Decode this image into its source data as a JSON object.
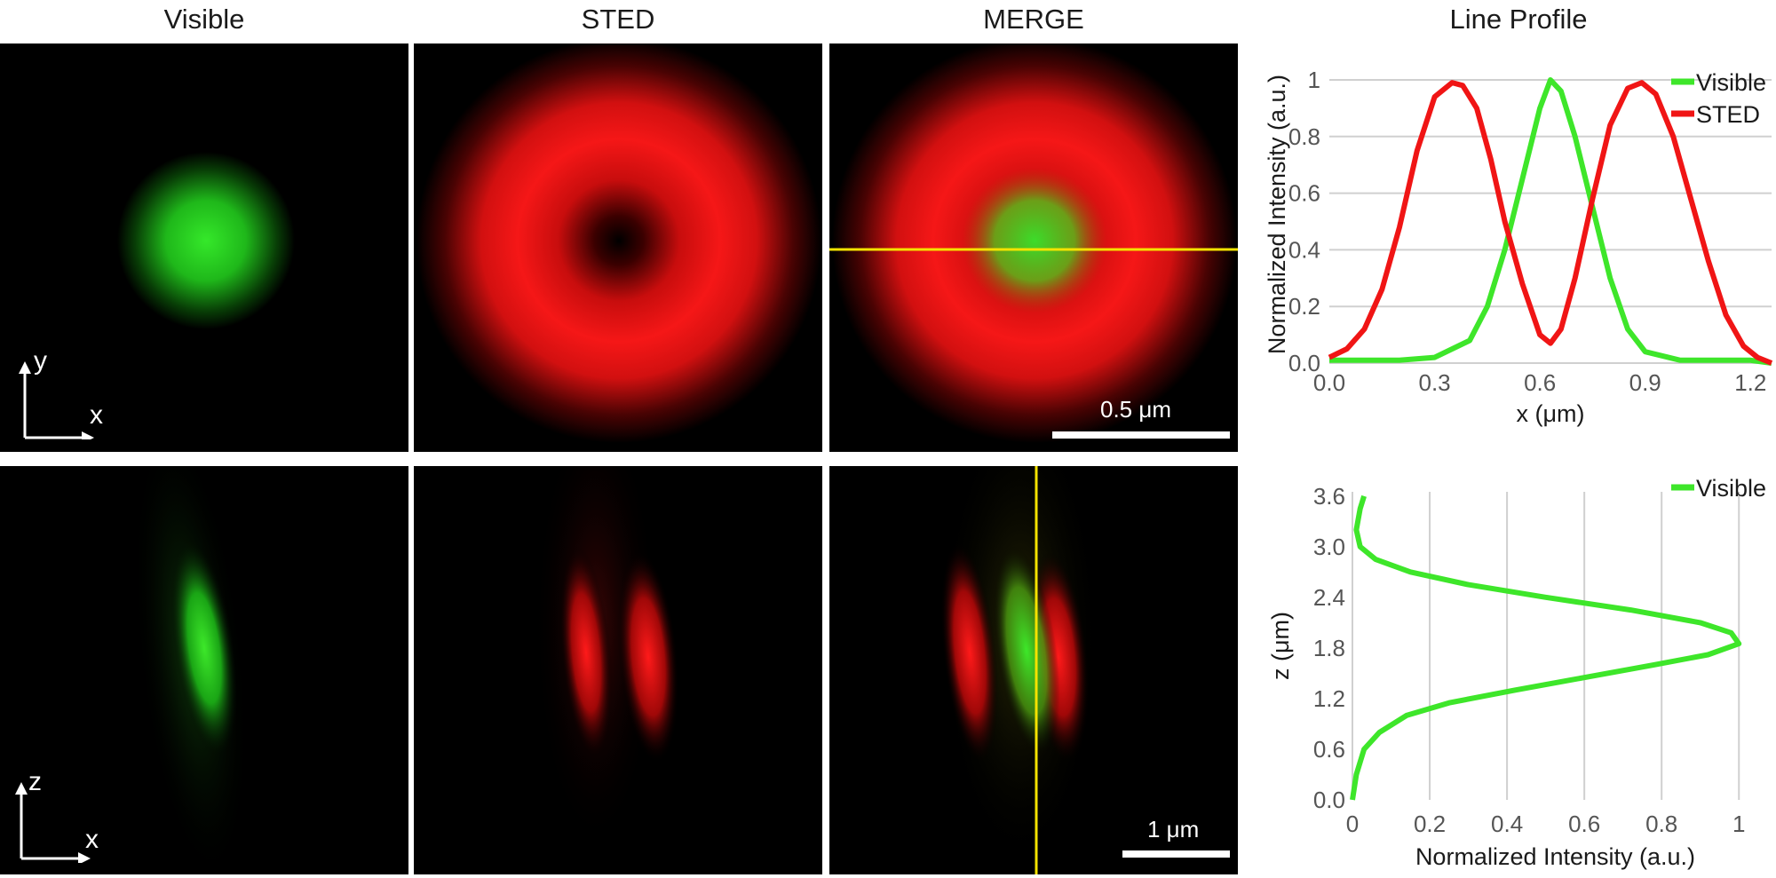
{
  "headers": {
    "visible": "Visible",
    "sted": "STED",
    "merge": "MERGE",
    "line_profile": "Line Profile"
  },
  "panels": {
    "top_axes": {
      "y": "y",
      "x": "x"
    },
    "bottom_axes": {
      "z": "z",
      "x": "x"
    },
    "top_scalebar": "0.5 μm",
    "bottom_scalebar": "1 μm"
  },
  "colors": {
    "visible": "#3ee62a",
    "sted": "#f01515",
    "line_marker": "#f5e300",
    "grid": "#d0d0d0"
  },
  "chart_data": [
    {
      "type": "line",
      "title": "Line Profile",
      "xlabel": "x (μm)",
      "ylabel": "Normalized Intensity (a.u.)",
      "xlim": [
        0,
        1.26
      ],
      "ylim": [
        0,
        1.05
      ],
      "xticks": [
        "0.0",
        "0.3",
        "0.6",
        "0.9",
        "1.2"
      ],
      "yticks": [
        "0.0",
        "0.2",
        "0.4",
        "0.6",
        "0.8",
        "1"
      ],
      "legend": "top-right",
      "series": [
        {
          "name": "Visible",
          "color": "#3ee62a",
          "x": [
            0,
            0.1,
            0.2,
            0.3,
            0.4,
            0.45,
            0.5,
            0.55,
            0.6,
            0.63,
            0.66,
            0.7,
            0.75,
            0.8,
            0.85,
            0.9,
            1.0,
            1.1,
            1.2,
            1.26
          ],
          "y": [
            0.01,
            0.01,
            0.01,
            0.02,
            0.08,
            0.2,
            0.4,
            0.65,
            0.9,
            1.0,
            0.96,
            0.8,
            0.55,
            0.3,
            0.12,
            0.04,
            0.01,
            0.01,
            0.01,
            0.0
          ]
        },
        {
          "name": "STED",
          "color": "#f01515",
          "x": [
            0,
            0.05,
            0.1,
            0.15,
            0.2,
            0.25,
            0.3,
            0.35,
            0.38,
            0.42,
            0.46,
            0.5,
            0.55,
            0.6,
            0.63,
            0.66,
            0.7,
            0.75,
            0.8,
            0.85,
            0.89,
            0.93,
            0.98,
            1.03,
            1.08,
            1.13,
            1.18,
            1.22,
            1.26
          ],
          "y": [
            0.02,
            0.05,
            0.12,
            0.26,
            0.48,
            0.75,
            0.94,
            0.99,
            0.98,
            0.9,
            0.72,
            0.5,
            0.28,
            0.1,
            0.07,
            0.12,
            0.3,
            0.58,
            0.84,
            0.97,
            0.99,
            0.95,
            0.8,
            0.58,
            0.36,
            0.17,
            0.06,
            0.02,
            0.0
          ]
        }
      ]
    },
    {
      "type": "line",
      "xlabel": "Normalized Intensity (a.u.)",
      "ylabel": "z (μm)",
      "xlim": [
        0,
        1.05
      ],
      "ylim": [
        0,
        3.65
      ],
      "xticks": [
        "0",
        "0.2",
        "0.4",
        "0.6",
        "0.8",
        "1"
      ],
      "yticks": [
        "0.0",
        "0.6",
        "1.2",
        "1.8",
        "2.4",
        "3.0",
        "3.6"
      ],
      "legend": "top-right",
      "series": [
        {
          "name": "Visible",
          "color": "#3ee62a",
          "x": [
            0.0,
            0.01,
            0.03,
            0.07,
            0.14,
            0.25,
            0.42,
            0.6,
            0.78,
            0.92,
            1.0,
            0.98,
            0.9,
            0.72,
            0.5,
            0.3,
            0.15,
            0.06,
            0.02,
            0.01,
            0.02,
            0.03
          ],
          "y": [
            0.0,
            0.3,
            0.6,
            0.8,
            1.0,
            1.15,
            1.3,
            1.45,
            1.6,
            1.72,
            1.85,
            1.98,
            2.1,
            2.25,
            2.4,
            2.55,
            2.7,
            2.85,
            3.0,
            3.2,
            3.45,
            3.6
          ]
        }
      ]
    }
  ]
}
